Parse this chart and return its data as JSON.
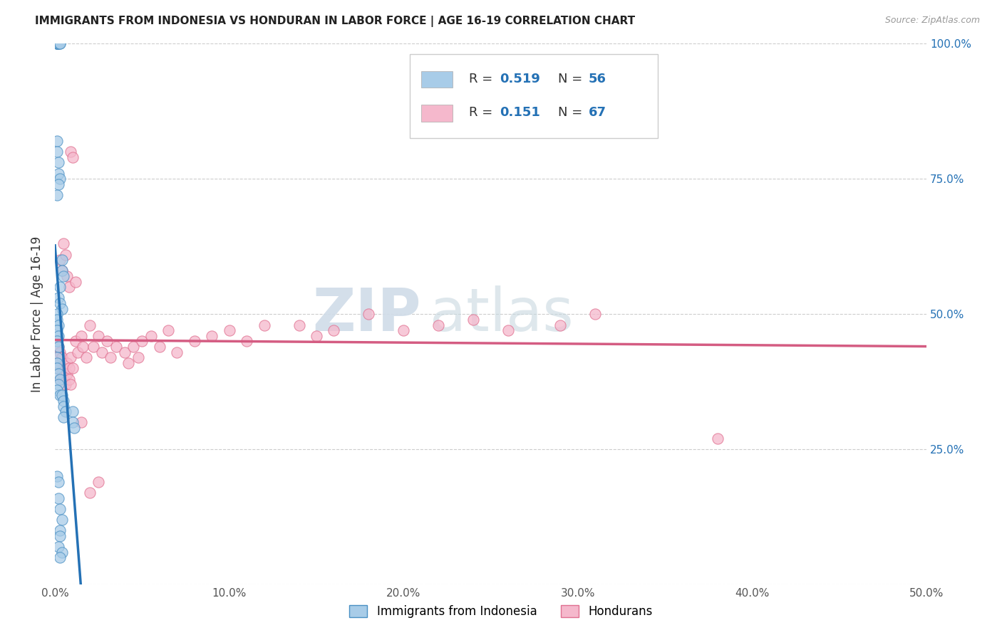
{
  "title": "IMMIGRANTS FROM INDONESIA VS HONDURAN IN LABOR FORCE | AGE 16-19 CORRELATION CHART",
  "source": "Source: ZipAtlas.com",
  "ylabel": "In Labor Force | Age 16-19",
  "xmin": 0.0,
  "xmax": 0.5,
  "ymin": 0.0,
  "ymax": 1.0,
  "xticks": [
    0.0,
    0.1,
    0.2,
    0.3,
    0.4,
    0.5
  ],
  "xticklabels": [
    "0.0%",
    "10.0%",
    "20.0%",
    "30.0%",
    "40.0%",
    "50.0%"
  ],
  "yticks": [
    0.0,
    0.25,
    0.5,
    0.75,
    1.0
  ],
  "yticklabels_right": [
    "",
    "25.0%",
    "50.0%",
    "75.0%",
    "100.0%"
  ],
  "legend_r1": "0.519",
  "legend_n1": "56",
  "legend_r2": "0.151",
  "legend_n2": "67",
  "legend_label1": "Immigrants from Indonesia",
  "legend_label2": "Hondurans",
  "blue_fill": "#a8cce8",
  "blue_edge": "#4a90c4",
  "blue_line": "#2471b5",
  "pink_fill": "#f5b8cc",
  "pink_edge": "#e07090",
  "pink_line": "#d45c82",
  "watermark_zip": "ZIP",
  "watermark_atlas": "atlas",
  "indonesia_x": [
    0.001,
    0.001,
    0.001,
    0.001,
    0.002,
    0.002,
    0.002,
    0.003,
    0.003,
    0.001,
    0.001,
    0.002,
    0.002,
    0.003,
    0.002,
    0.001,
    0.004,
    0.004,
    0.005,
    0.003,
    0.002,
    0.003,
    0.004,
    0.001,
    0.001,
    0.002,
    0.001,
    0.002,
    0.001,
    0.002,
    0.001,
    0.001,
    0.001,
    0.002,
    0.003,
    0.002,
    0.001,
    0.003,
    0.004,
    0.005,
    0.005,
    0.006,
    0.005,
    0.01,
    0.01,
    0.011,
    0.001,
    0.002,
    0.002,
    0.003,
    0.004,
    0.003,
    0.003,
    0.002,
    0.004,
    0.003
  ],
  "indonesia_y": [
    1.0,
    1.0,
    1.0,
    1.0,
    1.0,
    1.0,
    1.0,
    1.0,
    1.0,
    0.82,
    0.8,
    0.78,
    0.76,
    0.75,
    0.74,
    0.72,
    0.6,
    0.58,
    0.57,
    0.55,
    0.53,
    0.52,
    0.51,
    0.5,
    0.49,
    0.48,
    0.47,
    0.46,
    0.45,
    0.44,
    0.42,
    0.41,
    0.4,
    0.39,
    0.38,
    0.37,
    0.36,
    0.35,
    0.35,
    0.34,
    0.33,
    0.32,
    0.31,
    0.32,
    0.3,
    0.29,
    0.2,
    0.19,
    0.16,
    0.14,
    0.12,
    0.1,
    0.09,
    0.07,
    0.06,
    0.05
  ],
  "honduran_x": [
    0.001,
    0.001,
    0.002,
    0.002,
    0.003,
    0.003,
    0.004,
    0.004,
    0.005,
    0.005,
    0.006,
    0.007,
    0.007,
    0.008,
    0.008,
    0.009,
    0.009,
    0.01,
    0.012,
    0.013,
    0.015,
    0.016,
    0.018,
    0.02,
    0.022,
    0.025,
    0.027,
    0.03,
    0.032,
    0.035,
    0.04,
    0.042,
    0.045,
    0.048,
    0.05,
    0.055,
    0.06,
    0.065,
    0.07,
    0.08,
    0.09,
    0.1,
    0.11,
    0.12,
    0.14,
    0.15,
    0.16,
    0.18,
    0.2,
    0.22,
    0.24,
    0.26,
    0.29,
    0.31,
    0.38,
    0.003,
    0.004,
    0.005,
    0.006,
    0.007,
    0.008,
    0.009,
    0.01,
    0.012,
    0.015,
    0.02,
    0.025
  ],
  "honduran_y": [
    0.42,
    0.4,
    0.44,
    0.41,
    0.43,
    0.38,
    0.39,
    0.42,
    0.4,
    0.38,
    0.37,
    0.39,
    0.41,
    0.38,
    0.4,
    0.37,
    0.42,
    0.4,
    0.45,
    0.43,
    0.46,
    0.44,
    0.42,
    0.48,
    0.44,
    0.46,
    0.43,
    0.45,
    0.42,
    0.44,
    0.43,
    0.41,
    0.44,
    0.42,
    0.45,
    0.46,
    0.44,
    0.47,
    0.43,
    0.45,
    0.46,
    0.47,
    0.45,
    0.48,
    0.48,
    0.46,
    0.47,
    0.5,
    0.47,
    0.48,
    0.49,
    0.47,
    0.48,
    0.5,
    0.27,
    0.6,
    0.58,
    0.63,
    0.61,
    0.57,
    0.55,
    0.8,
    0.79,
    0.56,
    0.3,
    0.17,
    0.19
  ]
}
